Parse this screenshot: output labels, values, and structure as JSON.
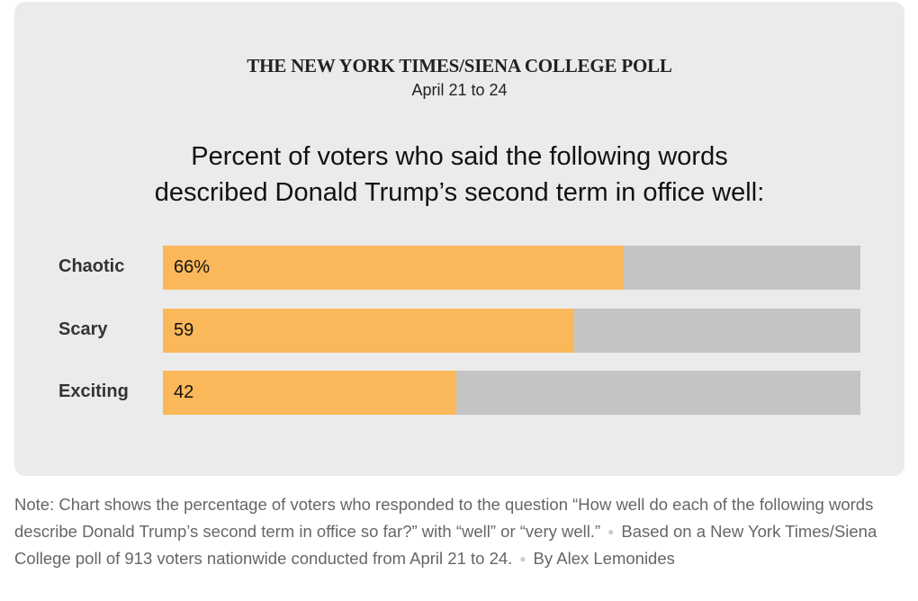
{
  "chart_data": {
    "type": "bar",
    "orientation": "horizontal",
    "source_title": "THE NEW YORK TIMES/SIENA COLLEGE POLL",
    "subtitle": "April 21 to 24",
    "title": "Percent of voters who said the following words described Donald Trump’s second term in office well:",
    "title_lines": [
      "Percent of voters who said the following words",
      "described Donald Trump’s second term in office well:"
    ],
    "categories": [
      "Chaotic",
      "Scary",
      "Exciting"
    ],
    "values": [
      66,
      59,
      42
    ],
    "value_labels": [
      "66%",
      "59",
      "42"
    ],
    "xlim": [
      0,
      100
    ],
    "colors": {
      "fill": "#fab85a",
      "track": "#c4c4c4",
      "background": "#ebebeb"
    }
  },
  "note": {
    "text": "Note: Chart shows the percentage of voters who responded to the question “How well do each of the following words describe Donald Trump’s second term in office so far?” with “well” or “very well.”",
    "source": "Based on a New York Times/Siena College poll of 913 voters nationwide conducted from April 21 to 24.",
    "byline": "By Alex Lemonides"
  }
}
